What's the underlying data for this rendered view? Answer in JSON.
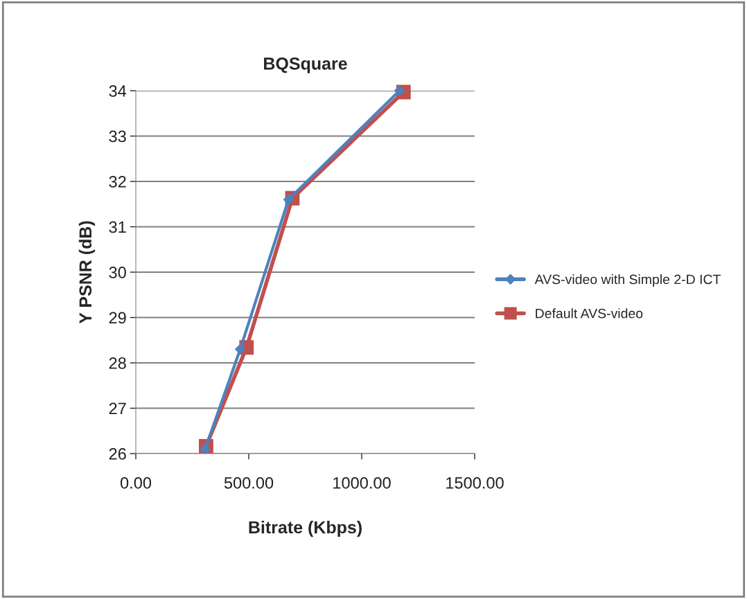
{
  "chart_data": {
    "type": "line",
    "title": "BQSquare",
    "xlabel": "Bitrate (Kbps)",
    "ylabel": "Y PSNR (dB)",
    "series": [
      {
        "name": "AVS-video with Simple 2-D ICT",
        "color": "#4f81bd",
        "marker": "diamond",
        "x": [
          307,
          462,
          676,
          1167
        ],
        "values": [
          26.1,
          28.3,
          31.6,
          34.0
        ]
      },
      {
        "name": "Default AVS-video",
        "color": "#c0504d",
        "marker": "square",
        "x": [
          311,
          490,
          693,
          1185
        ],
        "values": [
          26.16,
          28.34,
          31.63,
          33.97
        ]
      }
    ],
    "xlim": [
      0,
      1500
    ],
    "xticks": [
      {
        "value": 0,
        "label": "0.00"
      },
      {
        "value": 500,
        "label": "500.00"
      },
      {
        "value": 1000,
        "label": "1000.00"
      },
      {
        "value": 1500,
        "label": "1500.00"
      }
    ],
    "ylim": [
      26,
      34
    ],
    "yticks": [
      26,
      27,
      28,
      29,
      30,
      31,
      32,
      33,
      34
    ],
    "grid": "y",
    "legend": "right",
    "line_style": "solid"
  }
}
